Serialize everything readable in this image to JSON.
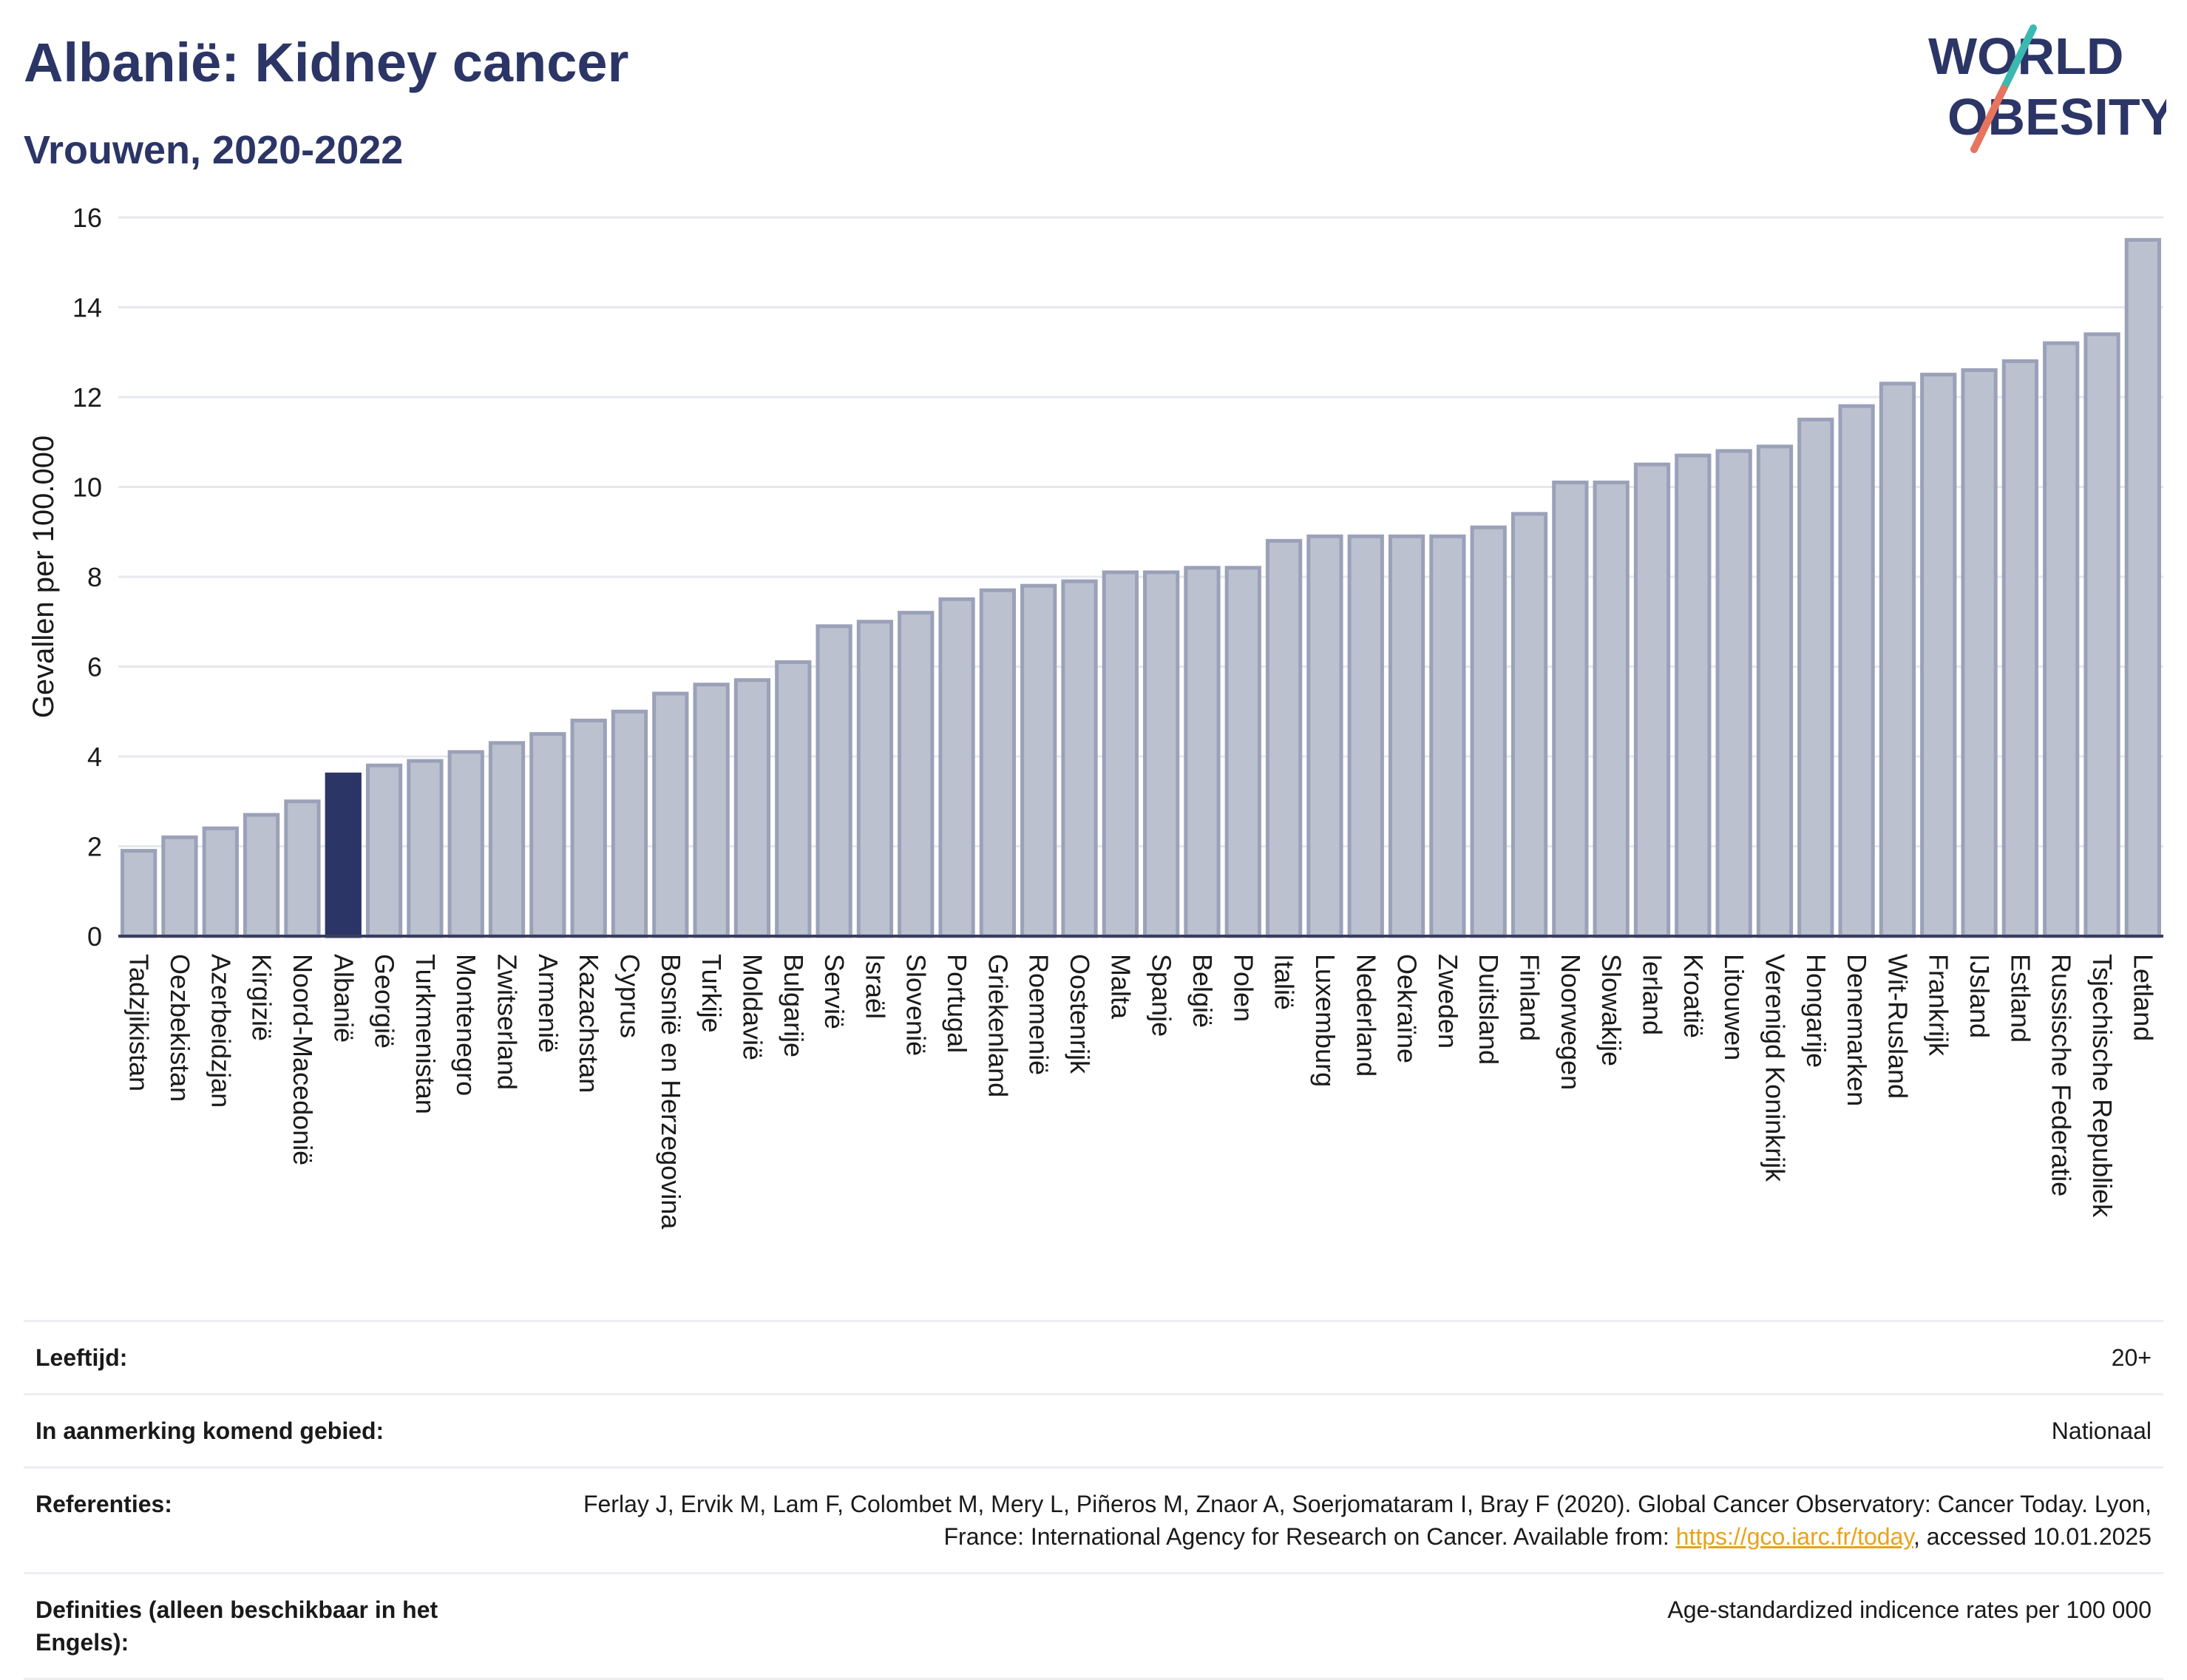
{
  "header": {
    "title": "Albanië: Kidney cancer",
    "subtitle": "Vrouwen, 2020-2022",
    "logo_line1": "WORLD",
    "logo_line2": "OBESITY"
  },
  "colors": {
    "bar": "#bcc1d0",
    "bar_edge": "#9aa1b8",
    "highlight": "#2b3566",
    "title": "#2b3566",
    "logo_slash_teal": "#3bb8b0",
    "logo_slash_coral": "#e8735e",
    "link": "#e8a317"
  },
  "chart_data": {
    "type": "bar",
    "title": "Albanië: Kidney cancer",
    "subtitle": "Vrouwen, 2020-2022",
    "xlabel": "",
    "ylabel": "Gevallen per 100.000",
    "ylim": [
      0,
      16
    ],
    "yticks": [
      0,
      2,
      4,
      6,
      8,
      10,
      12,
      14,
      16
    ],
    "grid": true,
    "highlight": "Albanië",
    "categories": [
      "Tadzjikistan",
      "Oezbekistan",
      "Azerbeidzjan",
      "Kirgizië",
      "Noord-Macedonië",
      "Albanië",
      "Georgië",
      "Turkmenistan",
      "Montenegro",
      "Zwitserland",
      "Armenië",
      "Kazachstan",
      "Cyprus",
      "Bosnië en Herzegovina",
      "Turkije",
      "Moldavië",
      "Bulgarije",
      "Servië",
      "Israël",
      "Slovenië",
      "Portugal",
      "Griekenland",
      "Roemenië",
      "Oostenrijk",
      "Malta",
      "Spanje",
      "België",
      "Polen",
      "Italië",
      "Luxemburg",
      "Nederland",
      "Oekraïne",
      "Zweden",
      "Duitsland",
      "Finland",
      "Noorwegen",
      "Slowakije",
      "Ierland",
      "Kroatië",
      "Litouwen",
      "Verenigd Koninkrijk",
      "Hongarije",
      "Denemarken",
      "Wit-Rusland",
      "Frankrijk",
      "IJsland",
      "Estland",
      "Russische Federatie",
      "Tsjechische Republiek",
      "Letland"
    ],
    "values": [
      1.9,
      2.2,
      2.4,
      2.7,
      3.0,
      3.6,
      3.8,
      3.9,
      4.1,
      4.3,
      4.5,
      4.8,
      5.0,
      5.4,
      5.6,
      5.7,
      6.1,
      6.9,
      7.0,
      7.2,
      7.5,
      7.7,
      7.8,
      7.9,
      8.1,
      8.1,
      8.2,
      8.2,
      8.8,
      8.9,
      8.9,
      8.9,
      8.9,
      9.1,
      9.4,
      10.1,
      10.1,
      10.5,
      10.7,
      10.8,
      10.9,
      11.5,
      11.8,
      12.3,
      12.5,
      12.6,
      12.8,
      13.2,
      13.4,
      15.5
    ]
  },
  "meta": [
    {
      "label": "Leeftijd:",
      "value": "20+"
    },
    {
      "label": "In aanmerking komend gebied:",
      "value": "Nationaal"
    },
    {
      "label": "Referenties:",
      "value_before": "Ferlay J, Ervik M, Lam F, Colombet M, Mery L, Piñeros M, Znaor A, Soerjomataram I, Bray F (2020). Global Cancer Observatory: Cancer Today. Lyon, France: International Agency for Research on Cancer. Available from: ",
      "link": "https://gco.iarc.fr/today",
      "value_after": ", accessed 10.01.2025"
    },
    {
      "label": "Definities (alleen beschikbaar in het Engels):",
      "value": "Age-standardized indicence rates per 100 000"
    }
  ]
}
